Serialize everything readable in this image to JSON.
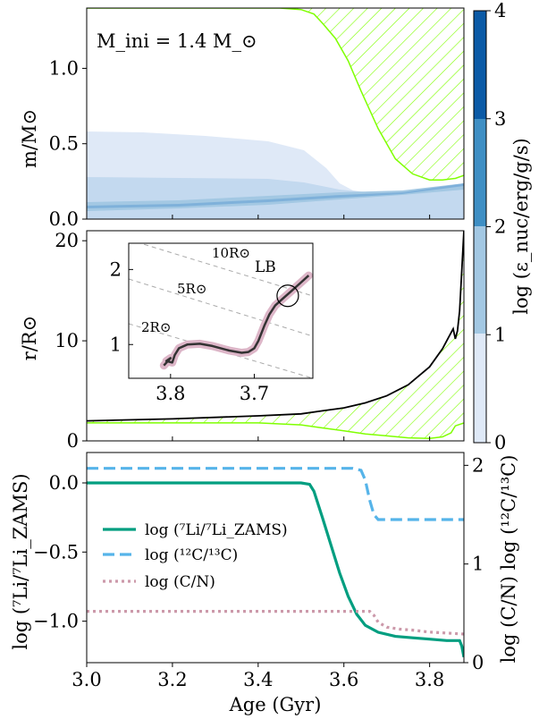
{
  "colors": {
    "green": "#7fff00",
    "teal": "#009e80",
    "skyblue": "#56b4e9",
    "pink": "#cc99aa",
    "band0": "#dfe9f7",
    "band1": "#a3c8e3",
    "band2": "#3f8fc4",
    "band3": "#0b5aa6",
    "inset_curve": "#ddb6c8"
  },
  "chart_data": [
    {
      "type": "area",
      "annotation": "M_ini = 1.4 M_⊙",
      "ylabel": "m/M⊙",
      "xlim": [
        3.0,
        3.88
      ],
      "ylim": [
        0.0,
        1.4
      ],
      "yticks": [
        "0.0",
        "0.5",
        "1.0"
      ],
      "ytick_values": [
        0.0,
        0.5,
        1.0
      ],
      "convective_envelope_boundary": {
        "x": [
          3.0,
          3.45,
          3.5,
          3.53,
          3.55,
          3.58,
          3.61,
          3.64,
          3.68,
          3.72,
          3.76,
          3.8,
          3.83,
          3.86,
          3.88
        ],
        "y": [
          1.4,
          1.4,
          1.39,
          1.36,
          1.3,
          1.2,
          1.05,
          0.85,
          0.6,
          0.4,
          0.3,
          0.26,
          0.26,
          0.27,
          0.29
        ]
      },
      "colorbar": {
        "label": "log (ε_nuc/erg/g/s)",
        "ticks": [
          "0",
          "1",
          "2",
          "3",
          "4"
        ],
        "range": [
          0,
          4
        ]
      }
    },
    {
      "type": "line",
      "ylabel": "r/R⊙",
      "xlim": [
        3.0,
        3.88
      ],
      "ylim": [
        0,
        21
      ],
      "yticks": [
        "0",
        "10",
        "20"
      ],
      "ytick_values": [
        0,
        10,
        20
      ],
      "radius": {
        "x": [
          3.0,
          3.2,
          3.4,
          3.5,
          3.55,
          3.6,
          3.65,
          3.7,
          3.75,
          3.8,
          3.83,
          3.85,
          3.855,
          3.86,
          3.865,
          3.87,
          3.875,
          3.88
        ],
        "y": [
          2.0,
          2.2,
          2.5,
          2.7,
          3.0,
          3.3,
          3.8,
          4.5,
          5.6,
          7.4,
          9.2,
          10.8,
          11.2,
          10.2,
          11.0,
          13.0,
          17.0,
          21.0
        ]
      },
      "envelope_base": {
        "x": [
          3.0,
          3.4,
          3.5,
          3.55,
          3.6,
          3.65,
          3.7,
          3.75,
          3.8,
          3.83,
          3.85,
          3.86,
          3.88
        ],
        "y": [
          1.8,
          1.8,
          1.6,
          1.3,
          1.0,
          0.7,
          0.5,
          0.3,
          0.25,
          0.4,
          0.8,
          1.5,
          1.8
        ]
      },
      "inset": {
        "xlim": [
          3.85,
          3.63
        ],
        "ylim": [
          0.55,
          2.35
        ],
        "xticks": [
          "3.8",
          "3.7"
        ],
        "xtick_values": [
          3.8,
          3.7
        ],
        "yticks": [
          "1",
          "2"
        ],
        "ytick_values": [
          1,
          2
        ],
        "iso_radius_labels": [
          "2R⊙",
          "5R⊙",
          "10R⊙"
        ],
        "marker_label": "LB",
        "marker": [
          3.66,
          1.65
        ],
        "track": {
          "x": [
            3.808,
            3.8,
            3.805,
            3.798,
            3.795,
            3.79,
            3.78,
            3.765,
            3.75,
            3.73,
            3.715,
            3.707,
            3.7,
            3.695,
            3.688,
            3.682,
            3.675,
            3.665,
            3.655,
            3.645,
            3.635
          ],
          "y": [
            0.72,
            0.82,
            0.78,
            0.76,
            0.86,
            0.95,
            1.0,
            1.01,
            0.98,
            0.92,
            0.89,
            0.9,
            0.95,
            1.05,
            1.25,
            1.4,
            1.52,
            1.62,
            1.72,
            1.82,
            1.92
          ]
        }
      }
    },
    {
      "type": "line",
      "xlabel": "Age (Gyr)",
      "ylabel_left": "log (⁷Li/⁷Li_ZAMS)",
      "ylabel_right": "log (C/N) log (¹²C/¹³C)",
      "xlim": [
        3.0,
        3.88
      ],
      "ylim_left": [
        -1.3,
        0.22
      ],
      "ylim_right": [
        0,
        2.13
      ],
      "xticks": [
        "3.0",
        "3.2",
        "3.4",
        "3.6",
        "3.8"
      ],
      "xtick_values": [
        3.0,
        3.2,
        3.4,
        3.6,
        3.8
      ],
      "yticks_left": [
        "0.0",
        "−0.5",
        "−1.0"
      ],
      "ytick_values_left": [
        0.0,
        -0.5,
        -1.0
      ],
      "yticks_right": [
        "0",
        "1",
        "2"
      ],
      "ytick_values_right": [
        0,
        1,
        2
      ],
      "legend": [
        "log (⁷Li/⁷Li_ZAMS)",
        "log (¹²C/¹³C)",
        "log (C/N)"
      ],
      "legend_position": "center-left",
      "series": [
        {
          "name": "log (⁷Li/⁷Li_ZAMS)",
          "axis": "left",
          "x": [
            3.0,
            3.5,
            3.52,
            3.53,
            3.55,
            3.57,
            3.59,
            3.61,
            3.63,
            3.65,
            3.68,
            3.72,
            3.76,
            3.8,
            3.84,
            3.87,
            3.875,
            3.88
          ],
          "y": [
            0.0,
            0.0,
            -0.01,
            -0.06,
            -0.25,
            -0.45,
            -0.65,
            -0.82,
            -0.95,
            -1.03,
            -1.08,
            -1.11,
            -1.12,
            -1.13,
            -1.14,
            -1.14,
            -1.18,
            -1.26
          ]
        },
        {
          "name": "log (¹²C/¹³C)",
          "axis": "right",
          "x": [
            3.0,
            3.62,
            3.64,
            3.65,
            3.66,
            3.67,
            3.68,
            3.88
          ],
          "y": [
            1.97,
            1.97,
            1.95,
            1.85,
            1.65,
            1.5,
            1.45,
            1.45
          ]
        },
        {
          "name": "log (C/N)",
          "axis": "right",
          "x": [
            3.0,
            3.66,
            3.67,
            3.68,
            3.7,
            3.73,
            3.76,
            3.8,
            3.84,
            3.88
          ],
          "y": [
            0.52,
            0.52,
            0.48,
            0.41,
            0.36,
            0.34,
            0.33,
            0.31,
            0.3,
            0.29
          ]
        }
      ]
    }
  ]
}
